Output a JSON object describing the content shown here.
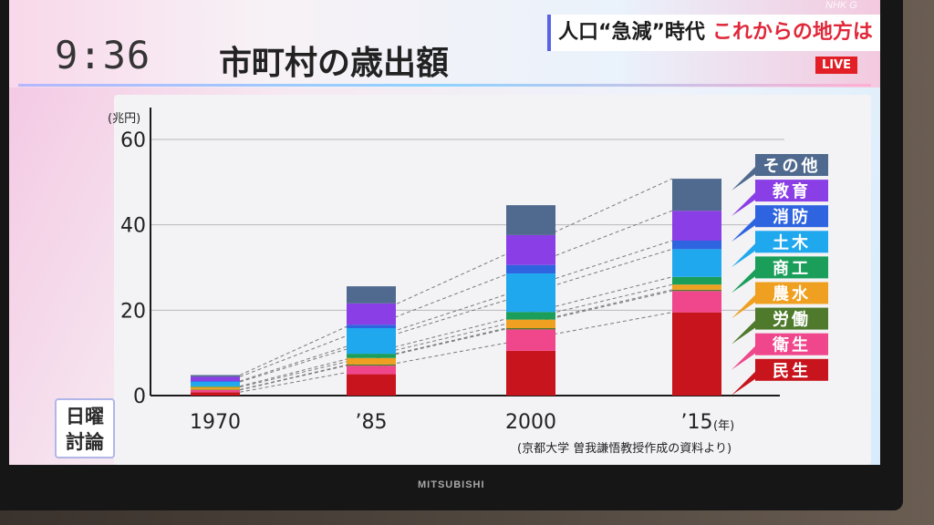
{
  "header": {
    "clock": "9:36",
    "title": "市町村の歳出額",
    "headline_part1": "人口“急減”時代",
    "headline_part2": "これからの地方は",
    "live": "LIVE",
    "channel_logo": "NHK G"
  },
  "program_badge": [
    "日曜",
    "討論"
  ],
  "tv_brand": "MITSUBISHI",
  "chart_data": {
    "type": "bar",
    "stacked": true,
    "unit_label": "(兆円)",
    "ylim": [
      0,
      60
    ],
    "y_ticks": [
      "0",
      "20",
      "40",
      "60"
    ],
    "grid": true,
    "categories": [
      "1970",
      "’85",
      "2000",
      "’15"
    ],
    "x_unit_suffix": "(年)",
    "series": [
      {
        "name": "民生",
        "color": "#c8141c",
        "values": [
          0.8,
          5.0,
          10.5,
          19.5
        ]
      },
      {
        "name": "衛生",
        "color": "#f0468c",
        "values": [
          0.5,
          2.0,
          5.0,
          5.0
        ]
      },
      {
        "name": "労働",
        "color": "#4f7a2c",
        "values": [
          0.1,
          0.3,
          0.3,
          0.3
        ]
      },
      {
        "name": "農水",
        "color": "#f0a020",
        "values": [
          0.6,
          1.5,
          2.0,
          1.2
        ]
      },
      {
        "name": "商工",
        "color": "#1a9e5a",
        "values": [
          0.2,
          1.0,
          1.8,
          1.8
        ]
      },
      {
        "name": "土木",
        "color": "#1fa8ee",
        "values": [
          1.0,
          6.0,
          9.0,
          6.5
        ]
      },
      {
        "name": "消防",
        "color": "#2f64e0",
        "values": [
          0.2,
          0.8,
          2.0,
          2.0
        ]
      },
      {
        "name": "教育",
        "color": "#8a3ee6",
        "values": [
          1.0,
          5.0,
          7.0,
          7.0
        ]
      },
      {
        "name": "その他",
        "color": "#4f6a8e",
        "values": [
          0.4,
          4.0,
          7.0,
          7.5
        ]
      }
    ],
    "legend_placement": "right",
    "source": "(京都大学 曽我謙悟教授作成の資料より)"
  }
}
